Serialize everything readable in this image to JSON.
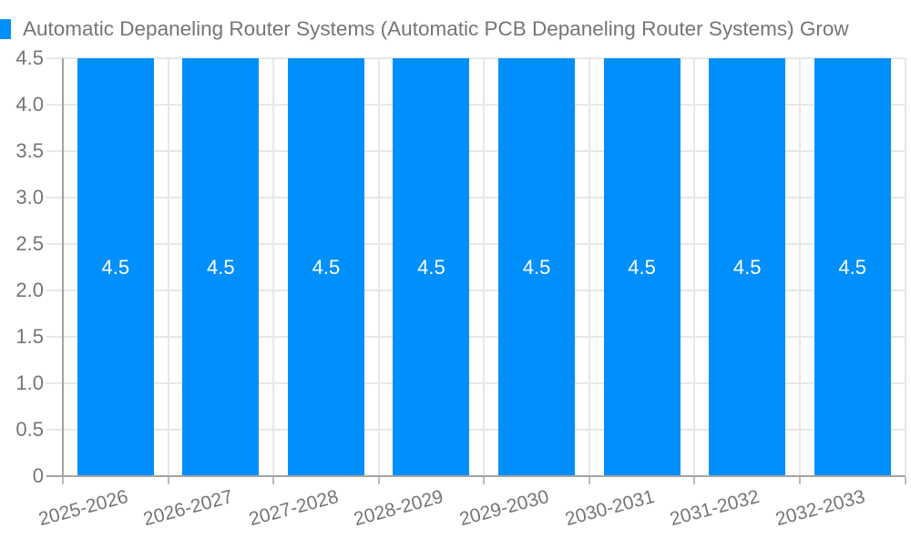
{
  "chart_data": {
    "type": "bar",
    "title": "Automatic Depaneling Router Systems (Automatic PCB Depaneling Router Systems) Grow",
    "categories": [
      "2025-2026",
      "2026-2027",
      "2027-2028",
      "2028-2029",
      "2029-2030",
      "2030-2031",
      "2031-2032",
      "2032-2033"
    ],
    "series": [
      {
        "name": "Automatic Depaneling Router Systems (Automatic PCB Depaneling Router Systems) Grow",
        "values": [
          4.5,
          4.5,
          4.5,
          4.5,
          4.5,
          4.5,
          4.5,
          4.5
        ]
      }
    ],
    "value_labels": [
      "4.5",
      "4.5",
      "4.5",
      "4.5",
      "4.5",
      "4.5",
      "4.5",
      "4.5"
    ],
    "xlabel": "",
    "ylabel": "",
    "ylim": [
      0,
      4.5
    ],
    "ytick_labels": [
      "0",
      "0.5",
      "1.0",
      "1.5",
      "2.0",
      "2.5",
      "3.0",
      "3.5",
      "4.0",
      "4.5"
    ],
    "ytick_values": [
      0,
      0.5,
      1.0,
      1.5,
      2.0,
      2.5,
      3.0,
      3.5,
      4.0,
      4.5
    ],
    "grid": true,
    "legend_position": "top-left",
    "colors": {
      "bar": "#008FFB",
      "gridline": "#e7e7e7",
      "axis_line": "#a3a3a3",
      "tick_mark": "#bdbdbd",
      "axis_label": "#757575",
      "title": "#757575",
      "value_label": "#ffffff",
      "background": "#ffffff"
    }
  }
}
